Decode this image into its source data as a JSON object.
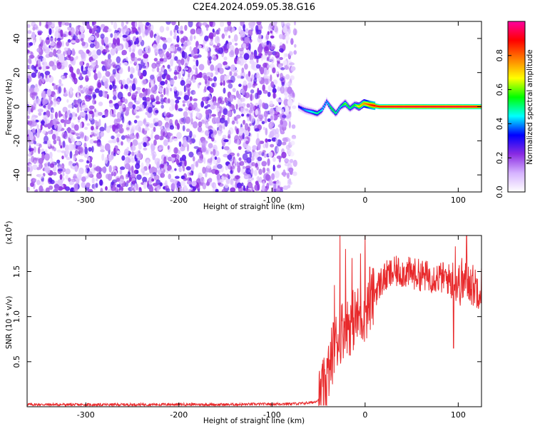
{
  "title": "C2E4.2024.059.05.38.G16",
  "chart_data": [
    {
      "type": "heatmap",
      "xlabel": "Height of straight line (km)",
      "ylabel": "Frequency (Hz)",
      "xlim": [
        -363,
        125
      ],
      "ylim": [
        -50,
        50
      ],
      "x_ticks": [
        -300,
        -200,
        -100,
        0,
        100
      ],
      "y_ticks": [
        -40,
        -20,
        0,
        20,
        40
      ],
      "colorbar": {
        "label": "Normalized spectral amplitude",
        "range": [
          0,
          1
        ],
        "ticks": [
          "0.0",
          "0.2",
          "0.4",
          "0.6",
          "0.8"
        ],
        "tick_values": [
          0,
          0.2,
          0.4,
          0.6,
          0.8
        ],
        "colors": [
          "#ffffff",
          "#d6b3ff",
          "#8a2be2",
          "#0000ff",
          "#00ffff",
          "#00ff00",
          "#ffff00",
          "#ff8000",
          "#ff0000",
          "#ff00a0"
        ]
      },
      "noise_region_x": [
        -363,
        -75
      ],
      "signal_track": {
        "x": [
          -72,
          -65,
          -58,
          -52,
          -47,
          -42,
          -37,
          -32,
          -27,
          -22,
          -17,
          -12,
          -7,
          -2,
          5,
          15,
          30,
          50,
          70,
          90,
          110,
          125
        ],
        "freq": [
          0,
          -2,
          -3,
          -4,
          -2,
          3,
          -1,
          -4,
          0,
          2,
          -1,
          1,
          0,
          2,
          1,
          0,
          0,
          0,
          0,
          0,
          0,
          0
        ],
        "amplitude": [
          0.3,
          0.4,
          0.45,
          0.5,
          0.45,
          0.4,
          0.55,
          0.5,
          0.45,
          0.6,
          0.5,
          0.55,
          0.7,
          0.75,
          0.85,
          0.9,
          0.92,
          0.93,
          0.92,
          0.93,
          0.92,
          0.9
        ]
      }
    },
    {
      "type": "line",
      "xlabel": "Height of straight line (km)",
      "ylabel": "SNR (10 * v/v)",
      "y_multiplier": "(x10",
      "y_multiplier_exp": "4",
      "y_multiplier_close": ")",
      "xlim": [
        -363,
        125
      ],
      "ylim": [
        0,
        19000
      ],
      "x_ticks": [
        -300,
        -200,
        -100,
        0,
        100
      ],
      "y_ticks": [
        5000,
        10000,
        15000
      ],
      "y_tick_labels": [
        "0.5",
        "1.0",
        "1.5"
      ],
      "color": "#e8292b",
      "series": [
        {
          "x": [
            -363,
            -300,
            -250,
            -200,
            -150,
            -100,
            -70,
            -55,
            -50,
            -45,
            -40,
            -37,
            -34,
            -31,
            -28,
            -25,
            -22,
            -19,
            -16,
            -13,
            -10,
            -7,
            -4,
            -1,
            2,
            5,
            8,
            12,
            18,
            25,
            35,
            45,
            55,
            65,
            75,
            85,
            95,
            100,
            103,
            106,
            110,
            115,
            120,
            125
          ],
          "y": [
            250,
            220,
            240,
            260,
            240,
            300,
            350,
            500,
            800,
            1800,
            3500,
            5000,
            6500,
            7200,
            8000,
            8500,
            9000,
            9300,
            9100,
            9600,
            9800,
            10000,
            10300,
            10500,
            11000,
            11500,
            12000,
            13000,
            14000,
            14600,
            15000,
            14900,
            14700,
            14500,
            14400,
            14300,
            14000,
            13700,
            13500,
            13800,
            14000,
            13500,
            13300,
            13200
          ],
          "spikes": [
            {
              "x": -38,
              "y": 5200
            },
            {
              "x": -33,
              "y": 13500
            },
            {
              "x": -27,
              "y": 19000
            },
            {
              "x": -21,
              "y": 17500
            },
            {
              "x": -14,
              "y": 16500
            },
            {
              "x": -5,
              "y": 17000
            },
            {
              "x": 0,
              "y": 19000
            },
            {
              "x": 5,
              "y": 15500
            },
            {
              "x": 95,
              "y": 6500
            },
            {
              "x": 97,
              "y": 17800
            },
            {
              "x": 104,
              "y": 16500
            },
            {
              "x": 109,
              "y": 19000
            },
            {
              "x": 112,
              "y": 14500
            }
          ],
          "noise_amplitude": [
            150,
            3500,
            1800,
            900
          ]
        }
      ]
    }
  ]
}
